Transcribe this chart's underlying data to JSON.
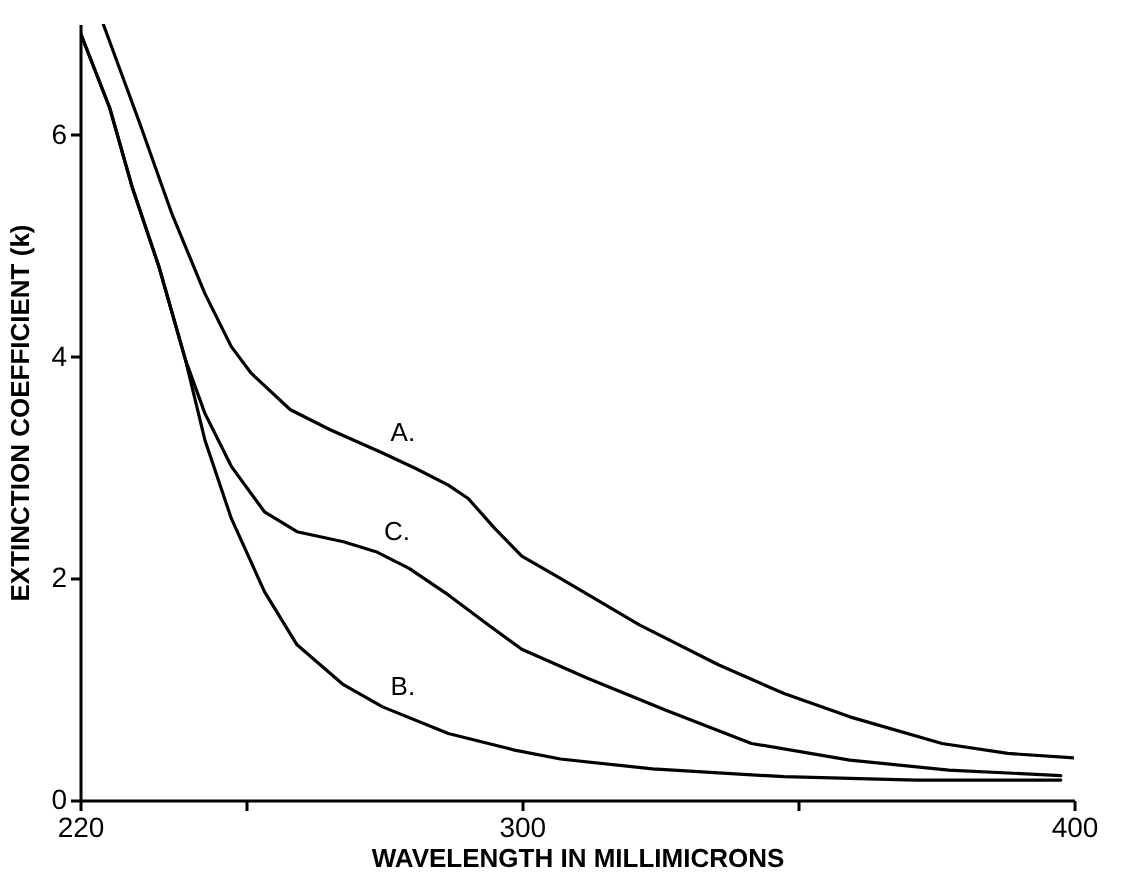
{
  "chart_data": {
    "type": "line",
    "xlabel": "WAVELENGTH IN MILLIMICRONS",
    "ylabel": "EXTINCTION COEFFICIENT (k)",
    "xlim": [
      220,
      400
    ],
    "ylim": [
      0,
      7
    ],
    "xticks": [
      220,
      {
        "value": 250,
        "label": null
      },
      300,
      {
        "value": 350,
        "label": null
      },
      400
    ],
    "yticks": [
      0,
      2,
      4,
      6
    ],
    "grid": false,
    "marker": "none",
    "line_style": "solid",
    "series": [
      {
        "name": "A.",
        "color": "#000000",
        "x": [
          224.2,
          230.7,
          236.7,
          242.6,
          247.4,
          251,
          258.1,
          265.3,
          274.8,
          280.8,
          286.7,
          290.3,
          295.1,
          300,
          307,
          321.3,
          335.6,
          347.5,
          359.4,
          376.1,
          388,
          400
        ],
        "values": [
          7.0,
          6.12,
          5.28,
          4.57,
          4.09,
          3.85,
          3.52,
          3.34,
          3.13,
          2.99,
          2.84,
          2.72,
          2.45,
          2.2,
          2.0,
          1.58,
          1.22,
          0.96,
          0.75,
          0.51,
          0.42,
          0.38
        ]
      },
      {
        "name": "B.",
        "color": "#000000",
        "x": [
          220,
          225.4,
          229.5,
          234.3,
          239.1,
          242.6,
          247.4,
          253.4,
          259.3,
          267.7,
          274.8,
          286.7,
          298.7,
          307,
          323.7,
          347.5,
          371.4,
          397.6
        ],
        "values": [
          6.93,
          6.24,
          5.52,
          4.81,
          3.97,
          3.25,
          2.54,
          1.88,
          1.4,
          1.04,
          0.84,
          0.6,
          0.45,
          0.37,
          0.28,
          0.21,
          0.18,
          0.18
        ]
      },
      {
        "name": "C.",
        "color": "#000000",
        "x": [
          220,
          225.4,
          229.5,
          234.3,
          239.1,
          242.6,
          247.4,
          253.4,
          259.3,
          267.7,
          273.6,
          279.6,
          286.7,
          293.9,
          300,
          311.8,
          326.1,
          341.6,
          359.4,
          377.3,
          397.6
        ],
        "values": [
          6.93,
          6.24,
          5.52,
          4.81,
          3.97,
          3.49,
          3.01,
          2.6,
          2.42,
          2.33,
          2.24,
          2.09,
          1.85,
          1.58,
          1.36,
          1.1,
          0.81,
          0.51,
          0.36,
          0.27,
          0.22
        ]
      }
    ]
  }
}
